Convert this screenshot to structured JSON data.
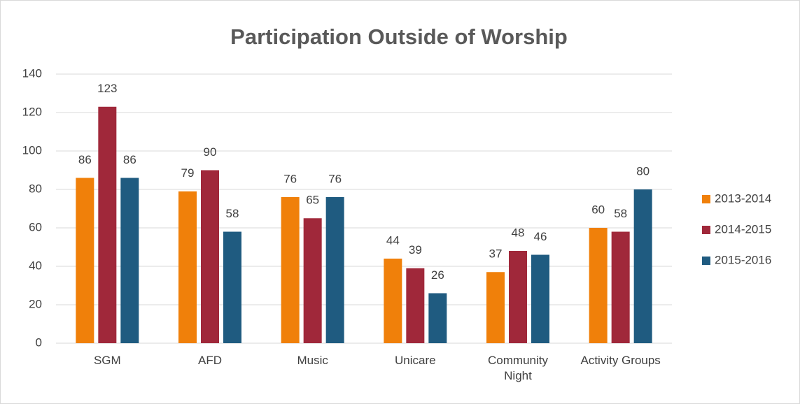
{
  "chart_data": {
    "type": "bar",
    "title": "Participation Outside of Worship",
    "categories": [
      "SGM",
      "AFD",
      "Music",
      "Unicare",
      "Community Night",
      "Activity Groups"
    ],
    "series": [
      {
        "name": "2013-2014",
        "color": "#f0800a",
        "values": [
          86,
          79,
          76,
          44,
          37,
          60
        ]
      },
      {
        "name": "2014-2015",
        "color": "#a0283a",
        "values": [
          123,
          90,
          65,
          39,
          48,
          58
        ]
      },
      {
        "name": "2015-2016",
        "color": "#1f5b80",
        "values": [
          86,
          58,
          76,
          26,
          46,
          80
        ]
      }
    ],
    "ylim": [
      0,
      140
    ],
    "yticks": [
      0,
      20,
      40,
      60,
      80,
      100,
      120,
      140
    ],
    "grid": true,
    "legend": "right"
  }
}
